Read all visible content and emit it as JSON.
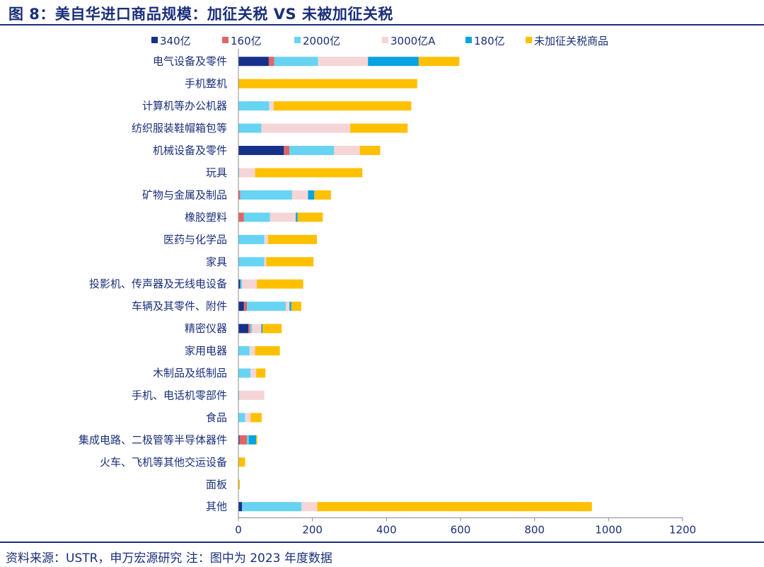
{
  "figure": {
    "title": "图 8：美自华进口商品规模：加征关税 VS 未被加征关税",
    "source": "资料来源：USTR，申万宏源研究 注：图中为 2023 年度数据"
  },
  "chart_data": {
    "type": "bar",
    "orientation": "horizontal",
    "stacked": true,
    "title": "",
    "xlabel": "",
    "ylabel": "",
    "xlim": [
      0,
      1200
    ],
    "xticks": [
      0,
      200,
      400,
      600,
      800,
      1000,
      1200
    ],
    "grid": false,
    "legend_position": "top",
    "categories": [
      "电气设备及零件",
      "手机整机",
      "计算机等办公机器",
      "纺织服装鞋帽箱包等",
      "机械设备及零件",
      "玩具",
      "矿物与金属及制品",
      "橡胶塑料",
      "医药与化学品",
      "家具",
      "投影机、传声器及无线电设备",
      "车辆及其零件、附件",
      "精密仪器",
      "家用电器",
      "木制品及纸制品",
      "手机、电话机零部件",
      "食品",
      "集成电路、二极管等半导体器件",
      "火车、飞机等其他交运设备",
      "面板",
      "其他"
    ],
    "series": [
      {
        "name": "340亿",
        "color": "#17318a",
        "values": [
          82,
          0,
          0,
          0,
          123,
          0,
          0,
          0,
          0,
          0,
          5,
          15,
          27,
          0,
          0,
          0,
          0,
          3,
          0,
          0,
          10
        ]
      },
      {
        "name": "160亿",
        "color": "#e06666",
        "values": [
          15,
          0,
          0,
          0,
          15,
          0,
          5,
          15,
          0,
          0,
          0,
          8,
          5,
          0,
          0,
          0,
          0,
          20,
          0,
          0,
          0
        ]
      },
      {
        "name": "2000亿",
        "color": "#66d4f2",
        "values": [
          118,
          0,
          83,
          62,
          120,
          2,
          140,
          70,
          70,
          70,
          5,
          105,
          5,
          30,
          33,
          2,
          18,
          5,
          0,
          0,
          160
        ]
      },
      {
        "name": "3000亿A",
        "color": "#f6d5d7",
        "values": [
          135,
          0,
          12,
          240,
          70,
          43,
          43,
          70,
          10,
          5,
          40,
          10,
          25,
          15,
          15,
          68,
          15,
          0,
          0,
          0,
          43
        ]
      },
      {
        "name": "180亿",
        "color": "#0aa2e0",
        "values": [
          137,
          0,
          0,
          0,
          0,
          0,
          17,
          5,
          0,
          0,
          0,
          5,
          3,
          0,
          0,
          0,
          0,
          20,
          0,
          0,
          0
        ]
      },
      {
        "name": "未加征关税商品",
        "color": "#ffc000",
        "values": [
          110,
          483,
          372,
          155,
          55,
          290,
          45,
          68,
          132,
          128,
          125,
          27,
          52,
          67,
          25,
          0,
          30,
          3,
          18,
          4,
          742
        ]
      }
    ]
  }
}
